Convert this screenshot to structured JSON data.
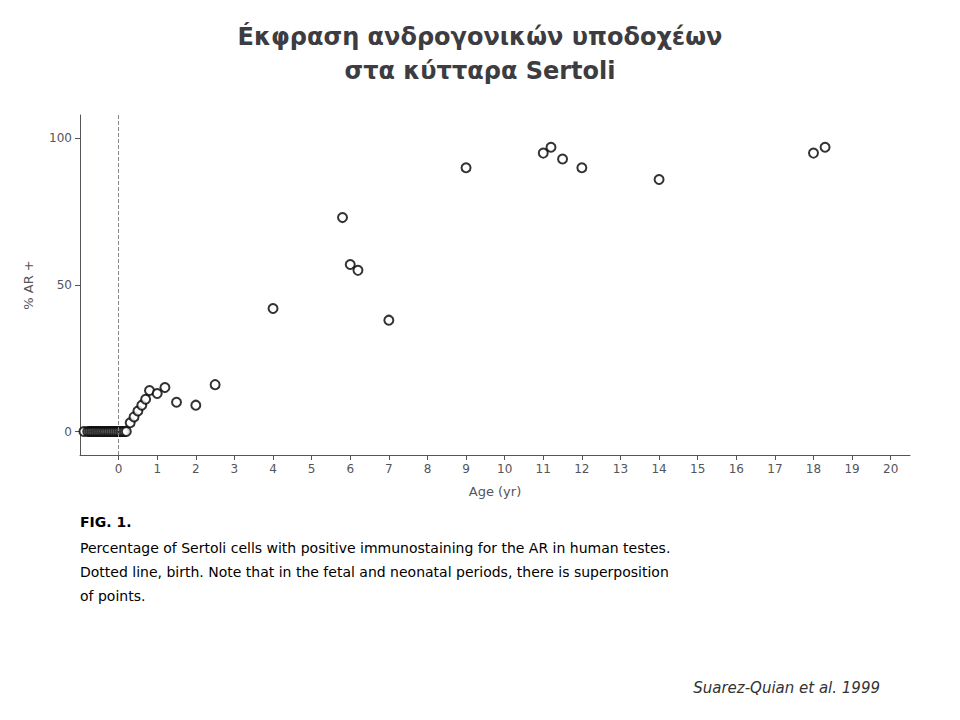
{
  "chart_data": {
    "type": "scatter",
    "title": [
      "Éκφραση ανδρογονικών υποδοχέων",
      "στα κύτταρα Sertoli"
    ],
    "xlabel": "Age (yr)",
    "ylabel": "% AR +",
    "x": [
      -0.9,
      -0.8,
      -0.75,
      -0.7,
      -0.65,
      -0.6,
      -0.55,
      -0.5,
      -0.45,
      -0.4,
      -0.35,
      -0.3,
      -0.25,
      -0.2,
      -0.15,
      -0.1,
      -0.05,
      0.0,
      0.05,
      0.1,
      0.15,
      0.2,
      0.3,
      0.4,
      0.5,
      0.6,
      0.7,
      0.8,
      1.0,
      1.2,
      1.5,
      2.0,
      2.5,
      4.0,
      5.8,
      6.0,
      6.2,
      7.0,
      9.0,
      11.0,
      11.2,
      11.5,
      12.0,
      14.0,
      18.0,
      18.3
    ],
    "values": [
      0,
      0,
      0,
      0,
      0,
      0,
      0,
      0,
      0,
      0,
      0,
      0,
      0,
      0,
      0,
      0,
      0,
      0,
      0,
      0,
      0,
      0,
      3,
      5,
      7,
      9,
      11,
      14,
      13,
      15,
      10,
      9,
      16,
      42,
      73,
      57,
      55,
      38,
      90,
      95,
      97,
      93,
      90,
      86,
      95,
      97
    ],
    "xlim": [
      -1.0,
      20.5
    ],
    "ylim": [
      -8,
      108
    ],
    "xticks": [
      0,
      1,
      2,
      3,
      4,
      5,
      6,
      7,
      8,
      9,
      10,
      11,
      12,
      13,
      14,
      15,
      16,
      17,
      18,
      19,
      20
    ],
    "yticks": [
      0,
      50,
      100
    ],
    "grid": false,
    "marker": "open circle",
    "color": "#000000",
    "reference_lines": [
      {
        "axis": "x",
        "value": 0,
        "line_style": "dashed"
      }
    ],
    "caption_title": "FIG. 1.",
    "caption": [
      "Percentage of Sertoli cells with positive immunostaining for the AR in human testes.",
      "Dotted line, birth. Note that in the fetal and neonatal periods, there is superposition",
      "of points."
    ],
    "footer": "Suarez-Quian et al. 1999"
  }
}
